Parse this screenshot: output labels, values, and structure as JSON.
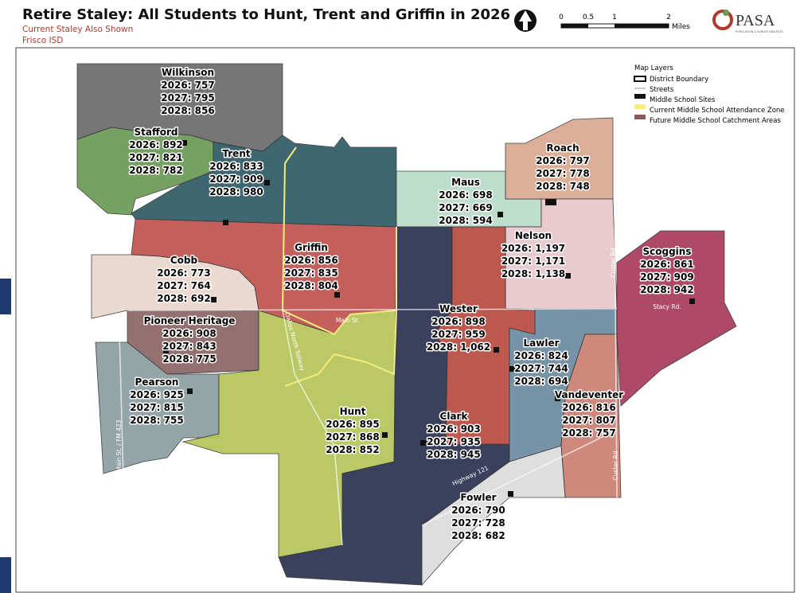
{
  "header": {
    "title": "Retire Staley: All Students to Hunt, Trent and Griffin in 2026",
    "subtitle": "Current Staley Also Shown",
    "district": "Frisco ISD"
  },
  "scale_bar": {
    "ticks": [
      "0",
      "0.5",
      "1",
      "2"
    ],
    "unit": "Miles"
  },
  "logo": {
    "name": "PASA",
    "tagline": "POPULATION & SURVEY ANALYSTS"
  },
  "legend": {
    "title": "Map Layers",
    "items": [
      "District Boundary",
      "Streets",
      "Middle School Sites",
      "Current Middle School Attendance Zone",
      "Future Middle School Catchment Areas"
    ]
  },
  "zones": [
    {
      "name": "Wilkinson",
      "lines": [
        "2026: 757",
        "2027: 795",
        "2028: 856"
      ]
    },
    {
      "name": "Stafford",
      "lines": [
        "2026: 892",
        "2027: 821",
        "2028: 782"
      ]
    },
    {
      "name": "Trent",
      "lines": [
        "2026: 833",
        "2027: 909",
        "2028: 980"
      ]
    },
    {
      "name": "Maus",
      "lines": [
        "2026: 698",
        "2027: 669",
        "2028: 594"
      ]
    },
    {
      "name": "Roach",
      "lines": [
        "2026: 797",
        "2027: 778",
        "2028: 748"
      ]
    },
    {
      "name": "Nelson",
      "lines": [
        "2026: 1,197",
        "2027: 1,171",
        "2028: 1,138"
      ]
    },
    {
      "name": "Cobb",
      "lines": [
        "2026: 773",
        "2027: 764",
        "2028: 692"
      ]
    },
    {
      "name": "Griffin",
      "lines": [
        "2026: 856",
        "2027: 835",
        "2028: 804"
      ]
    },
    {
      "name": "Scoggins",
      "lines": [
        "2026: 861",
        "2027: 909",
        "2028: 942"
      ]
    },
    {
      "name": "Pioneer Heritage",
      "lines": [
        "2026: 908",
        "2027: 843",
        "2028: 775"
      ]
    },
    {
      "name": "Wester",
      "lines": [
        "2026: 898",
        "2027: 959",
        "2028: 1,062"
      ]
    },
    {
      "name": "Lawler",
      "lines": [
        "2026: 824",
        "2027: 744",
        "2028: 694"
      ]
    },
    {
      "name": "Pearson",
      "lines": [
        "2026: 925",
        "2027: 815",
        "2028: 755"
      ]
    },
    {
      "name": "Hunt",
      "lines": [
        "2026: 895",
        "2027: 868",
        "2028: 852"
      ]
    },
    {
      "name": "Clark",
      "lines": [
        "2026: 903",
        "2027: 935",
        "2028: 945"
      ]
    },
    {
      "name": "Vandeventer",
      "lines": [
        "2026: 816",
        "2027: 807",
        "2028: 757"
      ]
    },
    {
      "name": "Fowler",
      "lines": [
        "2026: 790",
        "2027: 728",
        "2028: 682"
      ]
    }
  ],
  "streets": [
    "Main St.",
    "Dallas North Tollway",
    "Stacy Rd.",
    "Highway 121",
    "Custer Rd",
    "Custer Rd",
    "Main St. / FM 423"
  ]
}
